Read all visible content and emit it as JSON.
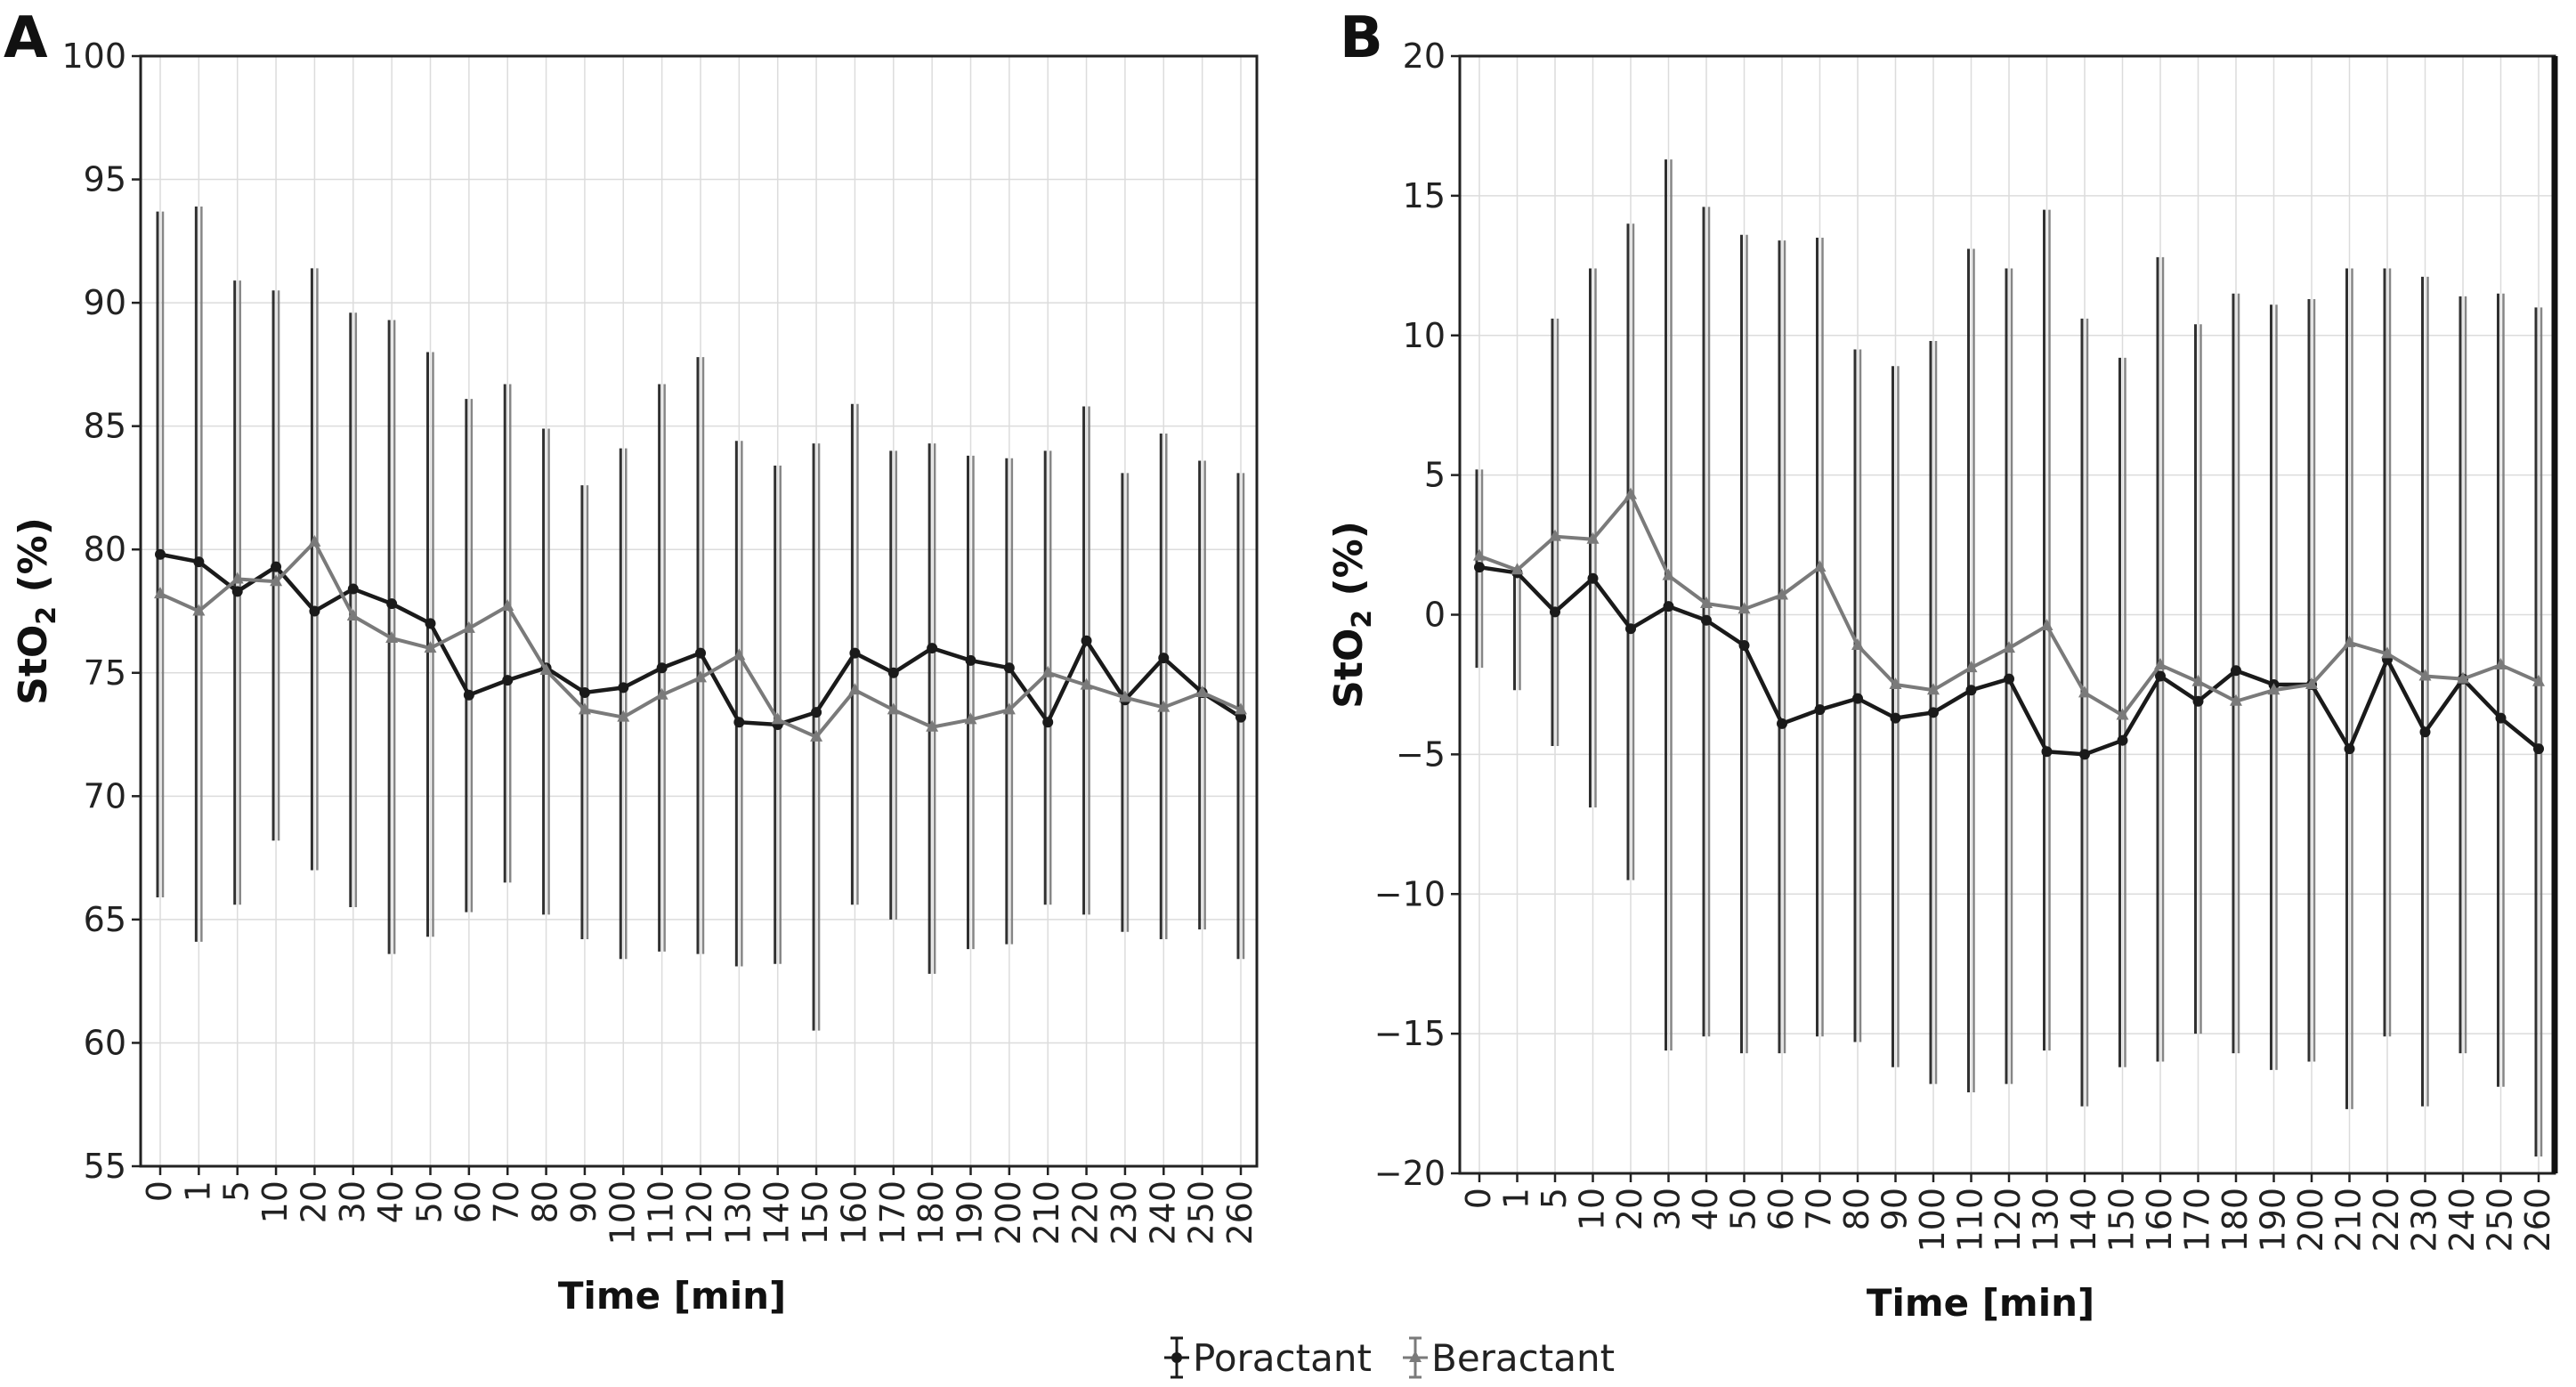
{
  "legend": {
    "entries": [
      {
        "name": "Poractant",
        "color": "#1a1a1a",
        "marker": "circle"
      },
      {
        "name": "Beractant",
        "color": "#7a7a7a",
        "marker": "triangle"
      }
    ]
  },
  "chart_data": [
    {
      "panel_label": "A",
      "type": "line",
      "error_bars": true,
      "xlabel": "Time [min]",
      "ylabel": "StO",
      "ylabel_subscript": "2",
      "ylabel_suffix": " (%)",
      "ylim": [
        55,
        100
      ],
      "yticks": [
        55,
        60,
        65,
        70,
        75,
        80,
        85,
        90,
        95,
        100
      ],
      "ytick_labels": [
        "55",
        "60",
        "65",
        "70",
        "75",
        "80",
        "85",
        "90",
        "95",
        "100"
      ],
      "grid": true,
      "categories": [
        "0",
        "1",
        "5",
        "10",
        "20",
        "30",
        "40",
        "50",
        "60",
        "70",
        "80",
        "90",
        "100",
        "110",
        "120",
        "130",
        "140",
        "150",
        "160",
        "170",
        "180",
        "190",
        "200",
        "210",
        "220",
        "230",
        "240",
        "250",
        "260"
      ],
      "series": [
        {
          "name": "Poractant",
          "color": "#1a1a1a",
          "values": [
            79.8,
            79.5,
            78.3,
            79.3,
            77.5,
            78.4,
            77.8,
            77.0,
            74.1,
            74.7,
            75.2,
            74.2,
            74.4,
            75.2,
            75.8,
            73.0,
            72.9,
            73.4,
            75.8,
            75.0,
            76.0,
            75.5,
            75.2,
            73.0,
            76.3,
            73.9,
            75.6,
            74.2,
            73.2
          ],
          "upper": [
            93.7,
            93.9,
            90.9,
            90.5,
            91.4,
            89.6,
            89.3,
            88.0,
            86.1,
            86.7,
            84.9,
            82.6,
            84.1,
            86.7,
            87.8,
            84.4,
            83.4,
            84.3,
            85.9,
            84.0,
            84.3,
            83.8,
            83.7,
            84.0,
            85.8,
            83.1,
            84.7,
            83.6,
            83.1
          ],
          "lower": [
            65.9,
            64.1,
            65.6,
            68.2,
            67.0,
            65.5,
            63.6,
            64.3,
            65.3,
            66.5,
            65.2,
            64.2,
            63.4,
            63.7,
            63.6,
            63.1,
            63.2,
            60.5,
            65.6,
            65.0,
            62.8,
            63.8,
            64.0,
            65.6,
            65.2,
            64.5,
            64.2,
            64.6,
            63.4
          ]
        },
        {
          "name": "Beractant",
          "color": "#7a7a7a",
          "values": [
            78.2,
            77.5,
            78.8,
            78.7,
            80.3,
            77.3,
            76.4,
            76.0,
            76.8,
            77.7,
            75.1,
            73.5,
            73.2,
            74.1,
            74.8,
            75.7,
            73.1,
            72.4,
            74.3,
            73.5,
            72.8,
            73.1,
            73.5,
            75.0,
            74.5,
            74.0,
            73.6,
            74.2,
            73.5
          ],
          "upper": [
            93.7,
            93.9,
            90.9,
            90.5,
            91.4,
            89.6,
            89.3,
            88.0,
            86.1,
            86.7,
            84.9,
            82.6,
            84.1,
            86.7,
            87.8,
            84.4,
            83.4,
            84.3,
            85.9,
            84.0,
            84.3,
            83.8,
            83.7,
            84.0,
            85.8,
            83.1,
            84.7,
            83.6,
            83.1
          ],
          "lower": [
            65.9,
            64.1,
            65.6,
            68.2,
            67.0,
            65.5,
            63.6,
            64.3,
            65.3,
            66.5,
            65.2,
            64.2,
            63.4,
            63.7,
            63.6,
            63.1,
            63.2,
            60.5,
            65.6,
            65.0,
            62.8,
            63.8,
            64.0,
            65.6,
            65.2,
            64.5,
            64.2,
            64.6,
            63.4
          ]
        }
      ]
    },
    {
      "panel_label": "B",
      "type": "line",
      "error_bars": true,
      "xlabel": "Time [min]",
      "ylabel": "StO",
      "ylabel_subscript": "2",
      "ylabel_suffix": " (%)",
      "ylim": [
        -20,
        20
      ],
      "yticks": [
        -20,
        -15,
        -10,
        -5,
        0,
        5,
        10,
        15,
        20
      ],
      "ytick_labels": [
        "−20",
        "−15",
        "−10",
        "−5",
        "0",
        "5",
        "10",
        "15",
        "20"
      ],
      "grid": true,
      "categories": [
        "0",
        "1",
        "5",
        "10",
        "20",
        "30",
        "40",
        "50",
        "60",
        "70",
        "80",
        "90",
        "100",
        "110",
        "120",
        "130",
        "140",
        "150",
        "160",
        "170",
        "180",
        "190",
        "200",
        "210",
        "220",
        "230",
        "240",
        "250",
        "260"
      ],
      "series": [
        {
          "name": "Poractant",
          "color": "#1a1a1a",
          "values": [
            1.7,
            1.5,
            0.1,
            1.3,
            -0.5,
            0.3,
            -0.2,
            -1.1,
            -3.9,
            -3.4,
            -3.0,
            -3.7,
            -3.5,
            -2.7,
            -2.3,
            -4.9,
            -5.0,
            -4.5,
            -2.2,
            -3.1,
            -2.0,
            -2.5,
            -2.5,
            -4.8,
            -1.6,
            -4.2,
            -2.3,
            -3.7,
            -4.8
          ],
          "upper": [
            5.2,
            1.7,
            10.6,
            12.4,
            14.0,
            16.3,
            14.6,
            13.6,
            13.4,
            13.5,
            9.5,
            8.9,
            9.8,
            13.1,
            12.4,
            14.5,
            10.6,
            9.2,
            12.8,
            10.4,
            11.5,
            11.1,
            11.3,
            12.4,
            12.4,
            12.1,
            11.4,
            11.5,
            11.0
          ],
          "lower": [
            -1.9,
            -2.7,
            -4.7,
            -6.9,
            -9.5,
            -15.6,
            -15.1,
            -15.7,
            -15.7,
            -15.1,
            -15.3,
            -16.2,
            -16.8,
            -17.1,
            -16.8,
            -15.6,
            -17.6,
            -16.2,
            -16.0,
            -15.0,
            -15.7,
            -16.3,
            -16.0,
            -17.7,
            -15.1,
            -17.6,
            -15.7,
            -16.9,
            -19.4
          ]
        },
        {
          "name": "Beractant",
          "color": "#7a7a7a",
          "values": [
            2.1,
            1.6,
            2.8,
            2.7,
            4.3,
            1.4,
            0.4,
            0.2,
            0.7,
            1.7,
            -1.1,
            -2.5,
            -2.7,
            -1.9,
            -1.2,
            -0.4,
            -2.8,
            -3.6,
            -1.8,
            -2.4,
            -3.1,
            -2.7,
            -2.5,
            -1.0,
            -1.4,
            -2.2,
            -2.3,
            -1.8,
            -2.4
          ],
          "upper": [
            5.2,
            1.7,
            10.6,
            12.4,
            14.0,
            16.3,
            14.6,
            13.6,
            13.4,
            13.5,
            9.5,
            8.9,
            9.8,
            13.1,
            12.4,
            14.5,
            10.6,
            9.2,
            12.8,
            10.4,
            11.5,
            11.1,
            11.3,
            12.4,
            12.4,
            12.1,
            11.4,
            11.5,
            11.0
          ],
          "lower": [
            -1.9,
            -2.7,
            -4.7,
            -6.9,
            -9.5,
            -15.6,
            -15.1,
            -15.7,
            -15.7,
            -15.1,
            -15.3,
            -16.2,
            -16.8,
            -17.1,
            -16.8,
            -15.6,
            -17.6,
            -16.2,
            -16.0,
            -15.0,
            -15.7,
            -16.3,
            -16.0,
            -17.7,
            -15.1,
            -17.6,
            -15.7,
            -16.9,
            -19.4
          ]
        }
      ]
    }
  ]
}
